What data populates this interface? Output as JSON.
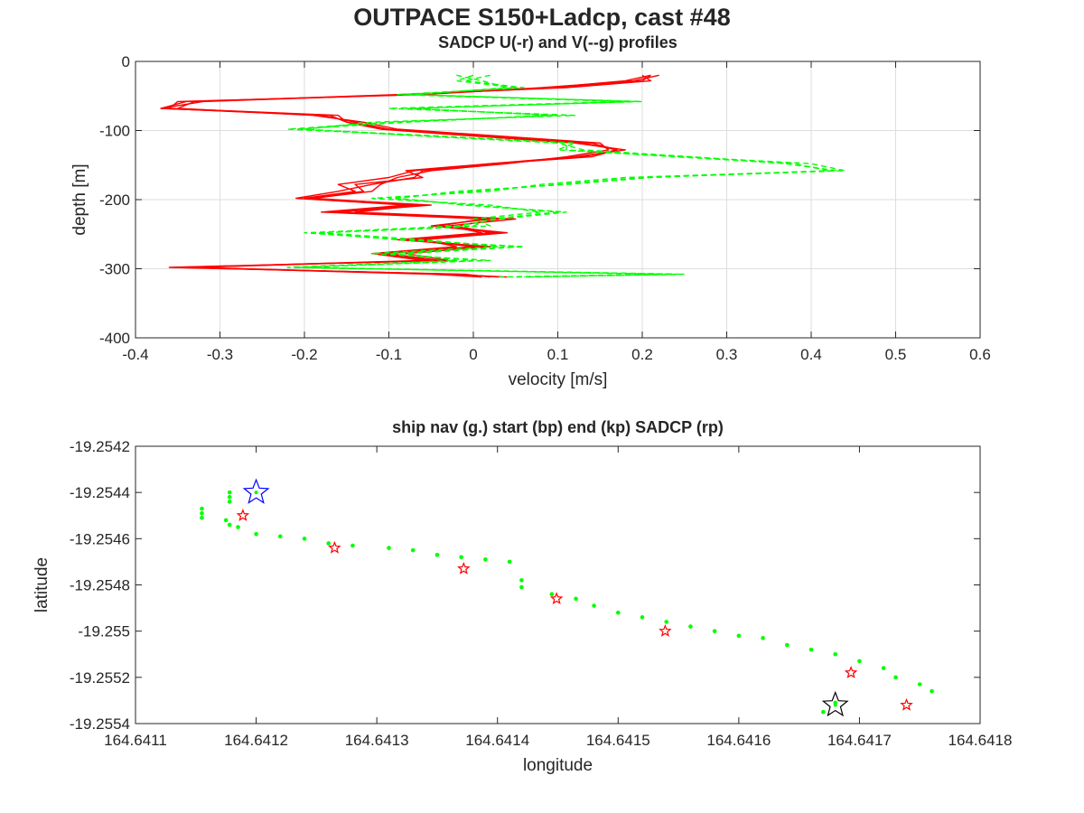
{
  "figure": {
    "title": "OUTPACE S150+Ladcp, cast #48"
  },
  "chart_data": [
    {
      "type": "line",
      "title": "SADCP U(-r) and V(--g) profiles",
      "xlabel": "velocity [m/s]",
      "ylabel": "depth [m]",
      "xlim": [
        -0.4,
        0.6
      ],
      "ylim": [
        -400,
        0
      ],
      "xticks": [
        "-0.4",
        "-0.3",
        "-0.2",
        "-0.1",
        "0",
        "0.1",
        "0.2",
        "0.3",
        "0.4",
        "0.5",
        "0.6"
      ],
      "yticks": [
        "0",
        "-100",
        "-200",
        "-300",
        "-400"
      ],
      "grid": true,
      "colors": {
        "U": "#ff0000",
        "V": "#00ff00"
      },
      "series": [
        {
          "name": "U",
          "style": "solid",
          "depth": [
            -20,
            -28,
            -38,
            -48,
            -58,
            -68,
            -78,
            -88,
            -98,
            -108,
            -118,
            -128,
            -138,
            -148,
            -158,
            -168,
            -178,
            -188,
            -198,
            -208,
            -218,
            -228,
            -238,
            -248,
            -258,
            -268,
            -278,
            -288,
            -298,
            -308,
            -312
          ],
          "profiles": [
            [
              0.21,
              0.2,
              0.1,
              -0.08,
              -0.32,
              -0.37,
              -0.18,
              -0.14,
              -0.1,
              0.02,
              0.14,
              0.17,
              0.13,
              0.03,
              -0.07,
              -0.1,
              -0.16,
              -0.14,
              -0.2,
              -0.05,
              -0.16,
              0.03,
              -0.02,
              0.02,
              -0.08,
              0.0,
              -0.1,
              -0.04,
              -0.36,
              -0.02,
              0.03
            ],
            [
              0.22,
              0.19,
              0.08,
              -0.06,
              -0.35,
              -0.36,
              -0.16,
              -0.15,
              -0.11,
              0.0,
              0.12,
              0.18,
              0.12,
              0.02,
              -0.06,
              -0.07,
              -0.12,
              -0.16,
              -0.21,
              -0.08,
              -0.18,
              0.01,
              -0.04,
              0.04,
              -0.06,
              -0.02,
              -0.12,
              -0.06,
              -0.34,
              -0.05,
              0.01
            ],
            [
              0.2,
              0.21,
              0.11,
              -0.09,
              -0.33,
              -0.35,
              -0.19,
              -0.13,
              -0.09,
              0.03,
              0.15,
              0.16,
              0.11,
              0.04,
              -0.05,
              -0.09,
              -0.11,
              -0.12,
              -0.19,
              -0.06,
              -0.14,
              0.05,
              -0.03,
              0.01,
              -0.09,
              0.02,
              -0.08,
              -0.03,
              -0.35,
              -0.01,
              0.02
            ],
            [
              0.21,
              0.18,
              0.09,
              -0.07,
              -0.34,
              -0.37,
              -0.17,
              -0.15,
              -0.1,
              0.01,
              0.13,
              0.17,
              0.14,
              0.02,
              -0.08,
              -0.06,
              -0.14,
              -0.13,
              -0.2,
              -0.07,
              -0.17,
              0.02,
              -0.05,
              0.03,
              -0.07,
              0.01,
              -0.11,
              -0.05,
              -0.33,
              -0.03,
              0.04
            ]
          ]
        },
        {
          "name": "V",
          "style": "dashed",
          "depth": [
            -20,
            -28,
            -38,
            -48,
            -58,
            -68,
            -78,
            -88,
            -98,
            -108,
            -118,
            -128,
            -138,
            -148,
            -158,
            -168,
            -178,
            -188,
            -198,
            -208,
            -218,
            -228,
            -238,
            -248,
            -258,
            -268,
            -278,
            -288,
            -298,
            -308,
            -312
          ],
          "profiles": [
            [
              0.0,
              -0.02,
              0.05,
              -0.08,
              0.2,
              -0.08,
              0.1,
              -0.1,
              -0.22,
              -0.05,
              0.12,
              0.1,
              0.25,
              0.4,
              0.44,
              0.2,
              0.1,
              0.0,
              -0.1,
              0.0,
              0.1,
              0.02,
              0.0,
              -0.2,
              -0.08,
              0.05,
              -0.1,
              0.0,
              -0.2,
              0.25,
              0.05
            ],
            [
              0.02,
              -0.01,
              0.06,
              -0.09,
              0.18,
              -0.1,
              0.12,
              -0.12,
              -0.2,
              -0.06,
              0.1,
              0.13,
              0.26,
              0.37,
              0.43,
              0.18,
              0.08,
              0.02,
              -0.12,
              0.02,
              0.08,
              0.0,
              0.02,
              -0.18,
              -0.06,
              0.03,
              -0.12,
              0.02,
              -0.21,
              0.22,
              0.03
            ],
            [
              -0.02,
              0.01,
              0.04,
              -0.07,
              0.19,
              -0.07,
              0.09,
              -0.08,
              -0.21,
              -0.04,
              0.11,
              0.11,
              0.24,
              0.38,
              0.42,
              0.21,
              0.11,
              -0.02,
              -0.09,
              -0.01,
              0.11,
              0.03,
              -0.02,
              -0.19,
              -0.09,
              0.06,
              -0.08,
              -0.02,
              -0.22,
              0.24,
              0.06
            ]
          ]
        }
      ]
    },
    {
      "type": "scatter",
      "title": "ship nav (g.) start (bp) end (kp) SADCP (rp)",
      "xlabel": "longitude",
      "ylabel": "latitude",
      "xlim": [
        164.6411,
        164.6418
      ],
      "ylim": [
        -19.2554,
        -19.2542
      ],
      "xticks": [
        "164.6411",
        "164.6412",
        "164.6413",
        "164.6414",
        "164.6415",
        "164.6416",
        "164.6417",
        "164.6418"
      ],
      "yticks": [
        "-19.2542",
        "-19.2544",
        "-19.2546",
        "-19.2548",
        "-19.255",
        "-19.2552",
        "-19.2554"
      ],
      "grid": false,
      "colors": {
        "nav": "#00ff00",
        "start": "#0000ff",
        "end": "#000000",
        "sadcp": "#ff0000"
      },
      "series": [
        {
          "name": "nav",
          "marker": "dot",
          "points": [
            [
              164.641178,
              -19.2544
            ],
            [
              164.641178,
              -19.25442
            ],
            [
              164.641178,
              -19.25444
            ],
            [
              164.641155,
              -19.25447
            ],
            [
              164.641155,
              -19.25449
            ],
            [
              164.641155,
              -19.25451
            ],
            [
              164.641175,
              -19.25452
            ],
            [
              164.641178,
              -19.25454
            ],
            [
              164.641185,
              -19.25455
            ],
            [
              164.6412,
              -19.25458
            ],
            [
              164.64122,
              -19.25459
            ],
            [
              164.64124,
              -19.2546
            ],
            [
              164.64126,
              -19.25462
            ],
            [
              164.64128,
              -19.25463
            ],
            [
              164.64131,
              -19.25464
            ],
            [
              164.64133,
              -19.25465
            ],
            [
              164.64135,
              -19.25467
            ],
            [
              164.64137,
              -19.25468
            ],
            [
              164.64139,
              -19.25469
            ],
            [
              164.64141,
              -19.2547
            ],
            [
              164.64142,
              -19.25478
            ],
            [
              164.64142,
              -19.25481
            ],
            [
              164.641445,
              -19.25484
            ],
            [
              164.641465,
              -19.25486
            ],
            [
              164.64148,
              -19.25489
            ],
            [
              164.6415,
              -19.25492
            ],
            [
              164.64152,
              -19.25494
            ],
            [
              164.64154,
              -19.25496
            ],
            [
              164.64156,
              -19.25498
            ],
            [
              164.64158,
              -19.255
            ],
            [
              164.6416,
              -19.25502
            ],
            [
              164.64162,
              -19.25503
            ],
            [
              164.64164,
              -19.25506
            ],
            [
              164.64166,
              -19.25508
            ],
            [
              164.64168,
              -19.2551
            ],
            [
              164.6417,
              -19.25513
            ],
            [
              164.64172,
              -19.25516
            ],
            [
              164.64173,
              -19.2552
            ],
            [
              164.64175,
              -19.25523
            ],
            [
              164.64176,
              -19.25526
            ],
            [
              164.64168,
              -19.25531
            ],
            [
              164.64167,
              -19.25535
            ]
          ]
        },
        {
          "name": "start",
          "marker": "star",
          "points": [
            [
              164.6412,
              -19.2544
            ]
          ]
        },
        {
          "name": "end",
          "marker": "star",
          "points": [
            [
              164.64168,
              -19.25532
            ]
          ]
        },
        {
          "name": "sadcp",
          "marker": "star",
          "points": [
            [
              164.641189,
              -19.2545
            ],
            [
              164.641265,
              -19.25464
            ],
            [
              164.641372,
              -19.25473
            ],
            [
              164.641449,
              -19.25486
            ],
            [
              164.641539,
              -19.255
            ],
            [
              164.641693,
              -19.25518
            ],
            [
              164.641739,
              -19.25532
            ]
          ]
        }
      ]
    }
  ]
}
